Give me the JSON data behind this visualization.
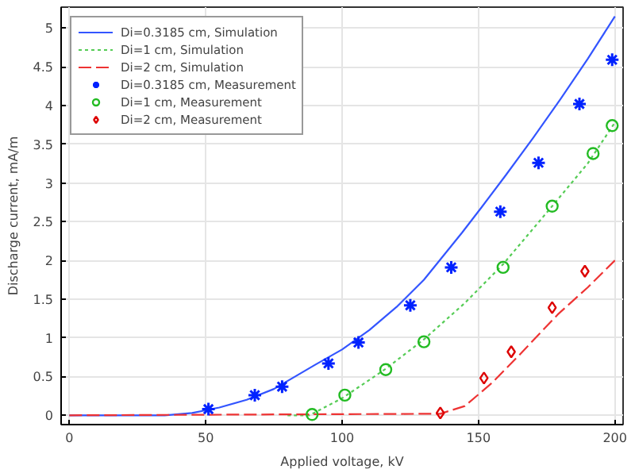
{
  "chart_data": {
    "type": "line",
    "xlabel": "Applied voltage, kV",
    "ylabel": "Discharge current, mA/m",
    "xlim": [
      -3,
      203
    ],
    "ylim": [
      -0.12,
      5.27
    ],
    "xticks": [
      0,
      50,
      100,
      150,
      200
    ],
    "yticks": [
      0,
      0.5,
      1,
      1.5,
      2,
      2.5,
      3,
      3.5,
      4,
      4.5,
      5
    ],
    "grid": true,
    "legend": "top left",
    "series": [
      {
        "name": "Di=0.3185 cm, Simulation",
        "line_style": "solid",
        "marker": "none",
        "color": "#3355ff",
        "x": [
          0,
          35,
          45,
          55,
          65,
          75,
          90,
          100,
          110,
          120,
          130,
          144,
          151,
          160,
          170,
          180,
          190,
          200
        ],
        "values": [
          0,
          0,
          0.03,
          0.1,
          0.2,
          0.34,
          0.65,
          0.85,
          1.1,
          1.4,
          1.75,
          2.36,
          2.68,
          3.1,
          3.58,
          4.08,
          4.6,
          5.15
        ]
      },
      {
        "name": "Di=1 cm, Simulation",
        "line_style": "dotted",
        "marker": "none",
        "color": "#55cc55",
        "x": [
          80,
          88,
          100,
          116,
          130,
          145,
          159,
          177,
          190,
          200
        ],
        "values": [
          0,
          0,
          0.22,
          0.6,
          0.98,
          1.45,
          1.95,
          2.7,
          3.25,
          3.78
        ]
      },
      {
        "name": "Di=2 cm, Simulation",
        "line_style": "dashed",
        "marker": "none",
        "color": "#ee3333",
        "x": [
          0,
          136,
          145,
          155,
          165,
          179,
          190,
          200
        ],
        "values": [
          0,
          0.02,
          0.12,
          0.42,
          0.78,
          1.3,
          1.65,
          2.0
        ]
      },
      {
        "name": "Di=0.3185 cm, Measurement",
        "type": "scatter",
        "marker": "cross",
        "color": "#0022ff",
        "x": [
          51,
          68,
          78,
          95,
          106,
          125,
          140,
          158,
          172,
          187,
          199
        ],
        "values": [
          0.08,
          0.26,
          0.37,
          0.67,
          0.94,
          1.42,
          1.91,
          2.63,
          3.26,
          4.02,
          4.59
        ]
      },
      {
        "name": "Di=1 cm, Measurement",
        "type": "scatter",
        "marker": "circle",
        "color": "#22bb22",
        "x": [
          89,
          101,
          116,
          130,
          159,
          177,
          192,
          199
        ],
        "values": [
          0.01,
          0.26,
          0.59,
          0.95,
          1.91,
          2.7,
          3.38,
          3.74
        ]
      },
      {
        "name": "Di=2 cm, Measurement",
        "type": "scatter",
        "marker": "diamond",
        "color": "#dd0000",
        "x": [
          136,
          152,
          162,
          177,
          189
        ],
        "values": [
          0.03,
          0.48,
          0.82,
          1.39,
          1.86
        ]
      }
    ]
  }
}
